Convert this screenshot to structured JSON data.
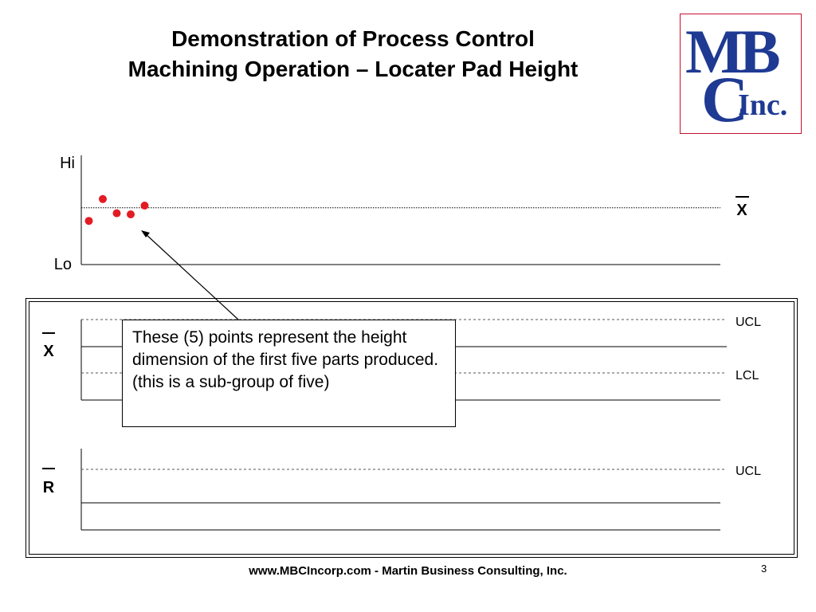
{
  "slide": {
    "title_line1": "Demonstration of Process Control",
    "title_line2": "Machining Operation – Locater Pad Height",
    "footer": "www.MBCIncorp.com  -  Martin Business Consulting, Inc.",
    "page_number": "3"
  },
  "logo": {
    "main": "MB",
    "c": "C",
    "inc": "Inc.",
    "color": "#1f3a93",
    "border_color": "#c8102e"
  },
  "callout": {
    "text": "These (5) points represent the height dimension of the first five parts produced. (this is a sub-group of five)"
  },
  "chart_data": [
    {
      "type": "scatter",
      "ylabel_top": "Hi",
      "ylabel_bottom": "Lo",
      "center_line_label": "X",
      "center_line_label_overbar": true,
      "points": [
        {
          "x": 1,
          "y": 0.4
        },
        {
          "x": 2,
          "y": 0.6
        },
        {
          "x": 3,
          "y": 0.47
        },
        {
          "x": 4,
          "y": 0.46
        },
        {
          "x": 5,
          "y": 0.54
        }
      ],
      "center_line": 0.52,
      "point_color": "#e31b23"
    },
    {
      "type": "line",
      "label": "X",
      "label_overbar": true,
      "limits": [
        {
          "name": "UCL",
          "style": "dashed"
        },
        {
          "name": "LCL",
          "style": "dashed"
        }
      ],
      "series": []
    },
    {
      "type": "line",
      "label": "R",
      "label_overbar": true,
      "limits": [
        {
          "name": "UCL",
          "style": "dashed"
        }
      ],
      "series": []
    }
  ]
}
